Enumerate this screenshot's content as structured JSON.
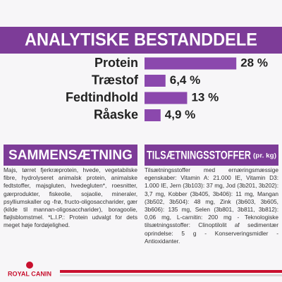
{
  "chart_data": {
    "type": "bar",
    "title": "ANALYTISKE BESTANDDELE",
    "categories": [
      "Protein",
      "Træstof",
      "Fedtindhold",
      "Råaske"
    ],
    "values": [
      28,
      6.4,
      13,
      4.9
    ],
    "value_labels": [
      "28 %",
      "6,4 %",
      "13 %",
      "4,9 %"
    ],
    "color": "#8b48ad"
  },
  "composition": {
    "title": "SAMMENSÆTNING",
    "text": "Majs, tørret fjerkræprotein, hvede, vegetabilske fibre, hydrolyseret animalsk protein, animalske fedtstoffer, majsgluten, hvedegluten*, roesnitter, gærprodukter, fiskeolie, sojaolie, mineraler, psylliumskaller og -frø, fructo-oligosaccharider, gær (kilde til mannan-oligosaccharider), boragoolie, fløjlsblomstmel. *L.I.P.: Protein udvalgt for dets meget høje fordøjelighed."
  },
  "additives": {
    "title": "TILSÆTNINGSSTOFFER",
    "unit": "(pr. kg)",
    "text": "Tilsætningsstoffer med ernæringsmæssige egenskaber: Vitamin A: 21.000 IE, Vitamin D3: 1.000 IE, Jern (3b103): 37 mg, Jod (3b201, 3b202): 3,7 mg, Kobber (3b405, 3b406): 11 mg, Mangan (3b502, 3b504): 48 mg, Zink (3b603, 3b605, 3b606): 135 mg, Selen (3b801, 3b811, 3b812): 0,06 mg, L-carnitin: 200 mg - Teknologiske tilsætningsstoffer: Clinoptilolit af sedimentær oprindelse: 5 g - Konserveringsmidler - Antioxidanter."
  },
  "footer": {
    "logo": "ROYAL CANIN"
  }
}
